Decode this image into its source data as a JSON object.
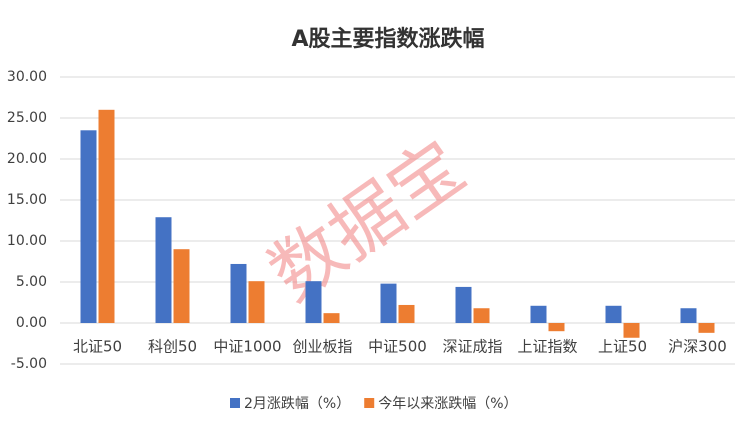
{
  "chart_data": {
    "type": "bar",
    "title": "A股主要指数涨跌幅",
    "watermark": "数据宝",
    "categories": [
      "北证50",
      "科创50",
      "中证1000",
      "创业板指",
      "中证500",
      "深证成指",
      "上证指数",
      "上证50",
      "沪深300"
    ],
    "series": [
      {
        "name": "2月涨跌幅（%）",
        "color": "#4472c4",
        "values": [
          23.5,
          12.9,
          7.2,
          5.1,
          4.8,
          4.4,
          2.1,
          2.1,
          1.8
        ]
      },
      {
        "name": "今年以来涨跌幅（%）",
        "color": "#ed7d31",
        "values": [
          26.0,
          9.0,
          5.1,
          1.2,
          2.2,
          1.8,
          -1.0,
          -1.8,
          -1.2
        ]
      }
    ],
    "ylim": [
      -5,
      30
    ],
    "yticks": [
      {
        "value": -5,
        "label": "-5.00"
      },
      {
        "value": 0,
        "label": "0.00"
      },
      {
        "value": 5,
        "label": "5.00"
      },
      {
        "value": 10,
        "label": "10.00"
      },
      {
        "value": 15,
        "label": "15.00"
      },
      {
        "value": 20,
        "label": "20.00"
      },
      {
        "value": 25,
        "label": "25.00"
      },
      {
        "value": 30,
        "label": "30.00"
      }
    ],
    "grid": true,
    "legend": "bottom"
  }
}
